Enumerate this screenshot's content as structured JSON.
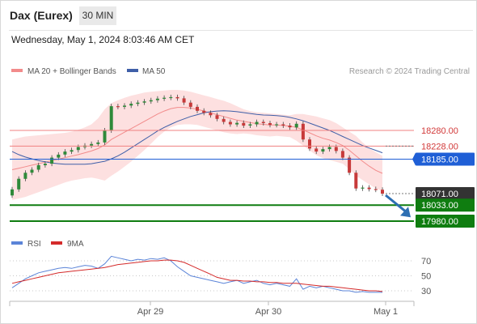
{
  "header": {
    "title": "Dax (Eurex)",
    "interval": "30 MIN",
    "timestamp": "Wednesday, May 1, 2024 8:03:46 AM CET"
  },
  "colors": {
    "ma20": "#f28b8b",
    "bollinger_fill": "#fde0e0",
    "ma50": "#3f5fa8",
    "candle_up": "#2f8a3a",
    "candle_down": "#c73a3a",
    "resistance": "#f08080",
    "pivot": "#1f5fd6",
    "support": "#0f7d10",
    "current": "#333333",
    "arrow": "#2d6fb3",
    "rsi": "#5b84d8",
    "rsi_ma": "#d42a2a"
  },
  "chart_data": [
    {
      "type": "candlestick",
      "title": "Dax (Eurex)",
      "legend": [
        {
          "name": "MA 20 + Bollinger Bands",
          "color": "#f28b8b"
        },
        {
          "name": "MA 50",
          "color": "#3f5fa8"
        }
      ],
      "legend_position": "top-left",
      "watermark": "Research © 2024 Trading Central",
      "x_ticks": [
        "Apr 29",
        "Apr 30",
        "May 1"
      ],
      "ylim": [
        17960,
        18400
      ],
      "levels": [
        {
          "value": 18280.0,
          "label": "18280.00",
          "kind": "resistance",
          "style": "solid"
        },
        {
          "value": 18228.0,
          "label": "18228.00",
          "kind": "resistance",
          "style": "solid"
        },
        {
          "value": 18185.0,
          "label": "18185.00",
          "kind": "pivot",
          "style": "solid"
        },
        {
          "value": 18071.0,
          "label": "18071.00",
          "kind": "current",
          "style": "dotted"
        },
        {
          "value": 18033.0,
          "label": "18033.00",
          "kind": "support",
          "style": "solid"
        },
        {
          "value": 17980.0,
          "label": "17980.00",
          "kind": "support",
          "style": "solid"
        }
      ],
      "arrow": {
        "direction": "down",
        "from": 18071,
        "to": 17990
      },
      "close": [
        18085,
        18120,
        18140,
        18150,
        18165,
        18170,
        18190,
        18200,
        18210,
        18215,
        18225,
        18230,
        18235,
        18240,
        18280,
        18360,
        18358,
        18362,
        18368,
        18372,
        18376,
        18380,
        18385,
        18388,
        18390,
        18386,
        18372,
        18358,
        18345,
        18338,
        18330,
        18318,
        18308,
        18300,
        18305,
        18296,
        18300,
        18308,
        18304,
        18298,
        18300,
        18296,
        18290,
        18302,
        18250,
        18220,
        18210,
        18218,
        18225,
        18212,
        18190,
        18140,
        18088,
        18091,
        18086,
        18084,
        18071
      ],
      "ma20": [
        18150,
        18155,
        18160,
        18165,
        18170,
        18175,
        18180,
        18185,
        18190,
        18195,
        18200,
        18206,
        18212,
        18220,
        18232,
        18250,
        18262,
        18274,
        18286,
        18298,
        18310,
        18322,
        18334,
        18344,
        18352,
        18356,
        18356,
        18354,
        18350,
        18344,
        18338,
        18332,
        18326,
        18320,
        18314,
        18310,
        18306,
        18302,
        18300,
        18298,
        18298,
        18296,
        18294,
        18290,
        18282,
        18272,
        18262,
        18254,
        18248,
        18240,
        18230,
        18214,
        18196,
        18178,
        18162,
        18148,
        18138
      ],
      "bb_upper": [
        18250,
        18255,
        18260,
        18262,
        18264,
        18266,
        18268,
        18270,
        18272,
        18276,
        18282,
        18290,
        18300,
        18320,
        18350,
        18370,
        18380,
        18388,
        18395,
        18400,
        18405,
        18408,
        18410,
        18412,
        18414,
        18414,
        18412,
        18408,
        18402,
        18396,
        18390,
        18384,
        18378,
        18370,
        18360,
        18350,
        18344,
        18340,
        18338,
        18336,
        18334,
        18332,
        18330,
        18334,
        18334,
        18330,
        18326,
        18320,
        18314,
        18304,
        18290,
        18276,
        18262,
        18240,
        18222,
        18208,
        18196
      ],
      "bb_lower": [
        18050,
        18055,
        18060,
        18068,
        18076,
        18084,
        18092,
        18100,
        18108,
        18114,
        18118,
        18122,
        18124,
        18120,
        18114,
        18130,
        18144,
        18160,
        18177,
        18196,
        18215,
        18236,
        18258,
        18276,
        18290,
        18298,
        18300,
        18300,
        18298,
        18292,
        18286,
        18280,
        18274,
        18270,
        18268,
        18270,
        18268,
        18264,
        18262,
        18260,
        18262,
        18260,
        18258,
        18246,
        18230,
        18214,
        18198,
        18188,
        18182,
        18176,
        18170,
        18152,
        18130,
        18116,
        18102,
        18088,
        18080
      ],
      "ma50": [
        18210,
        18200,
        18192,
        18186,
        18180,
        18176,
        18172,
        18170,
        18168,
        18168,
        18168,
        18168,
        18170,
        18174,
        18178,
        18186,
        18196,
        18208,
        18222,
        18236,
        18250,
        18264,
        18278,
        18290,
        18300,
        18310,
        18318,
        18326,
        18332,
        18338,
        18342,
        18344,
        18345,
        18344,
        18342,
        18339,
        18336,
        18333,
        18331,
        18330,
        18329,
        18327,
        18323,
        18318,
        18312,
        18304,
        18296,
        18288,
        18280,
        18270,
        18260,
        18250,
        18240,
        18230,
        18222,
        18214,
        18206
      ]
    },
    {
      "type": "line",
      "legend": [
        {
          "name": "RSI",
          "color": "#5b84d8"
        },
        {
          "name": "9MA",
          "color": "#d42a2a"
        }
      ],
      "legend_position": "top-left",
      "y_ticks": [
        "70",
        "50",
        "30"
      ],
      "ylim": [
        10,
        90
      ],
      "rsi": [
        34,
        40,
        46,
        50,
        54,
        56,
        58,
        60,
        61,
        60,
        62,
        64,
        63,
        60,
        66,
        76,
        74,
        72,
        70,
        72,
        71,
        73,
        72,
        74,
        70,
        62,
        56,
        50,
        48,
        46,
        44,
        42,
        40,
        42,
        44,
        40,
        42,
        44,
        40,
        38,
        40,
        38,
        36,
        46,
        32,
        36,
        34,
        36,
        34,
        32,
        30,
        30,
        28,
        29,
        28,
        28,
        28
      ],
      "rsi_ma": [
        40,
        42,
        44,
        46,
        48,
        50,
        52,
        54,
        55,
        56,
        57,
        58,
        59,
        60,
        61,
        63,
        65,
        66,
        67,
        68,
        69,
        70,
        70,
        71,
        71,
        70,
        68,
        64,
        60,
        56,
        52,
        48,
        46,
        44,
        44,
        43,
        43,
        42,
        42,
        41,
        41,
        40,
        40,
        40,
        39,
        38,
        37,
        36,
        36,
        35,
        34,
        33,
        32,
        31,
        30,
        30,
        29
      ]
    }
  ]
}
